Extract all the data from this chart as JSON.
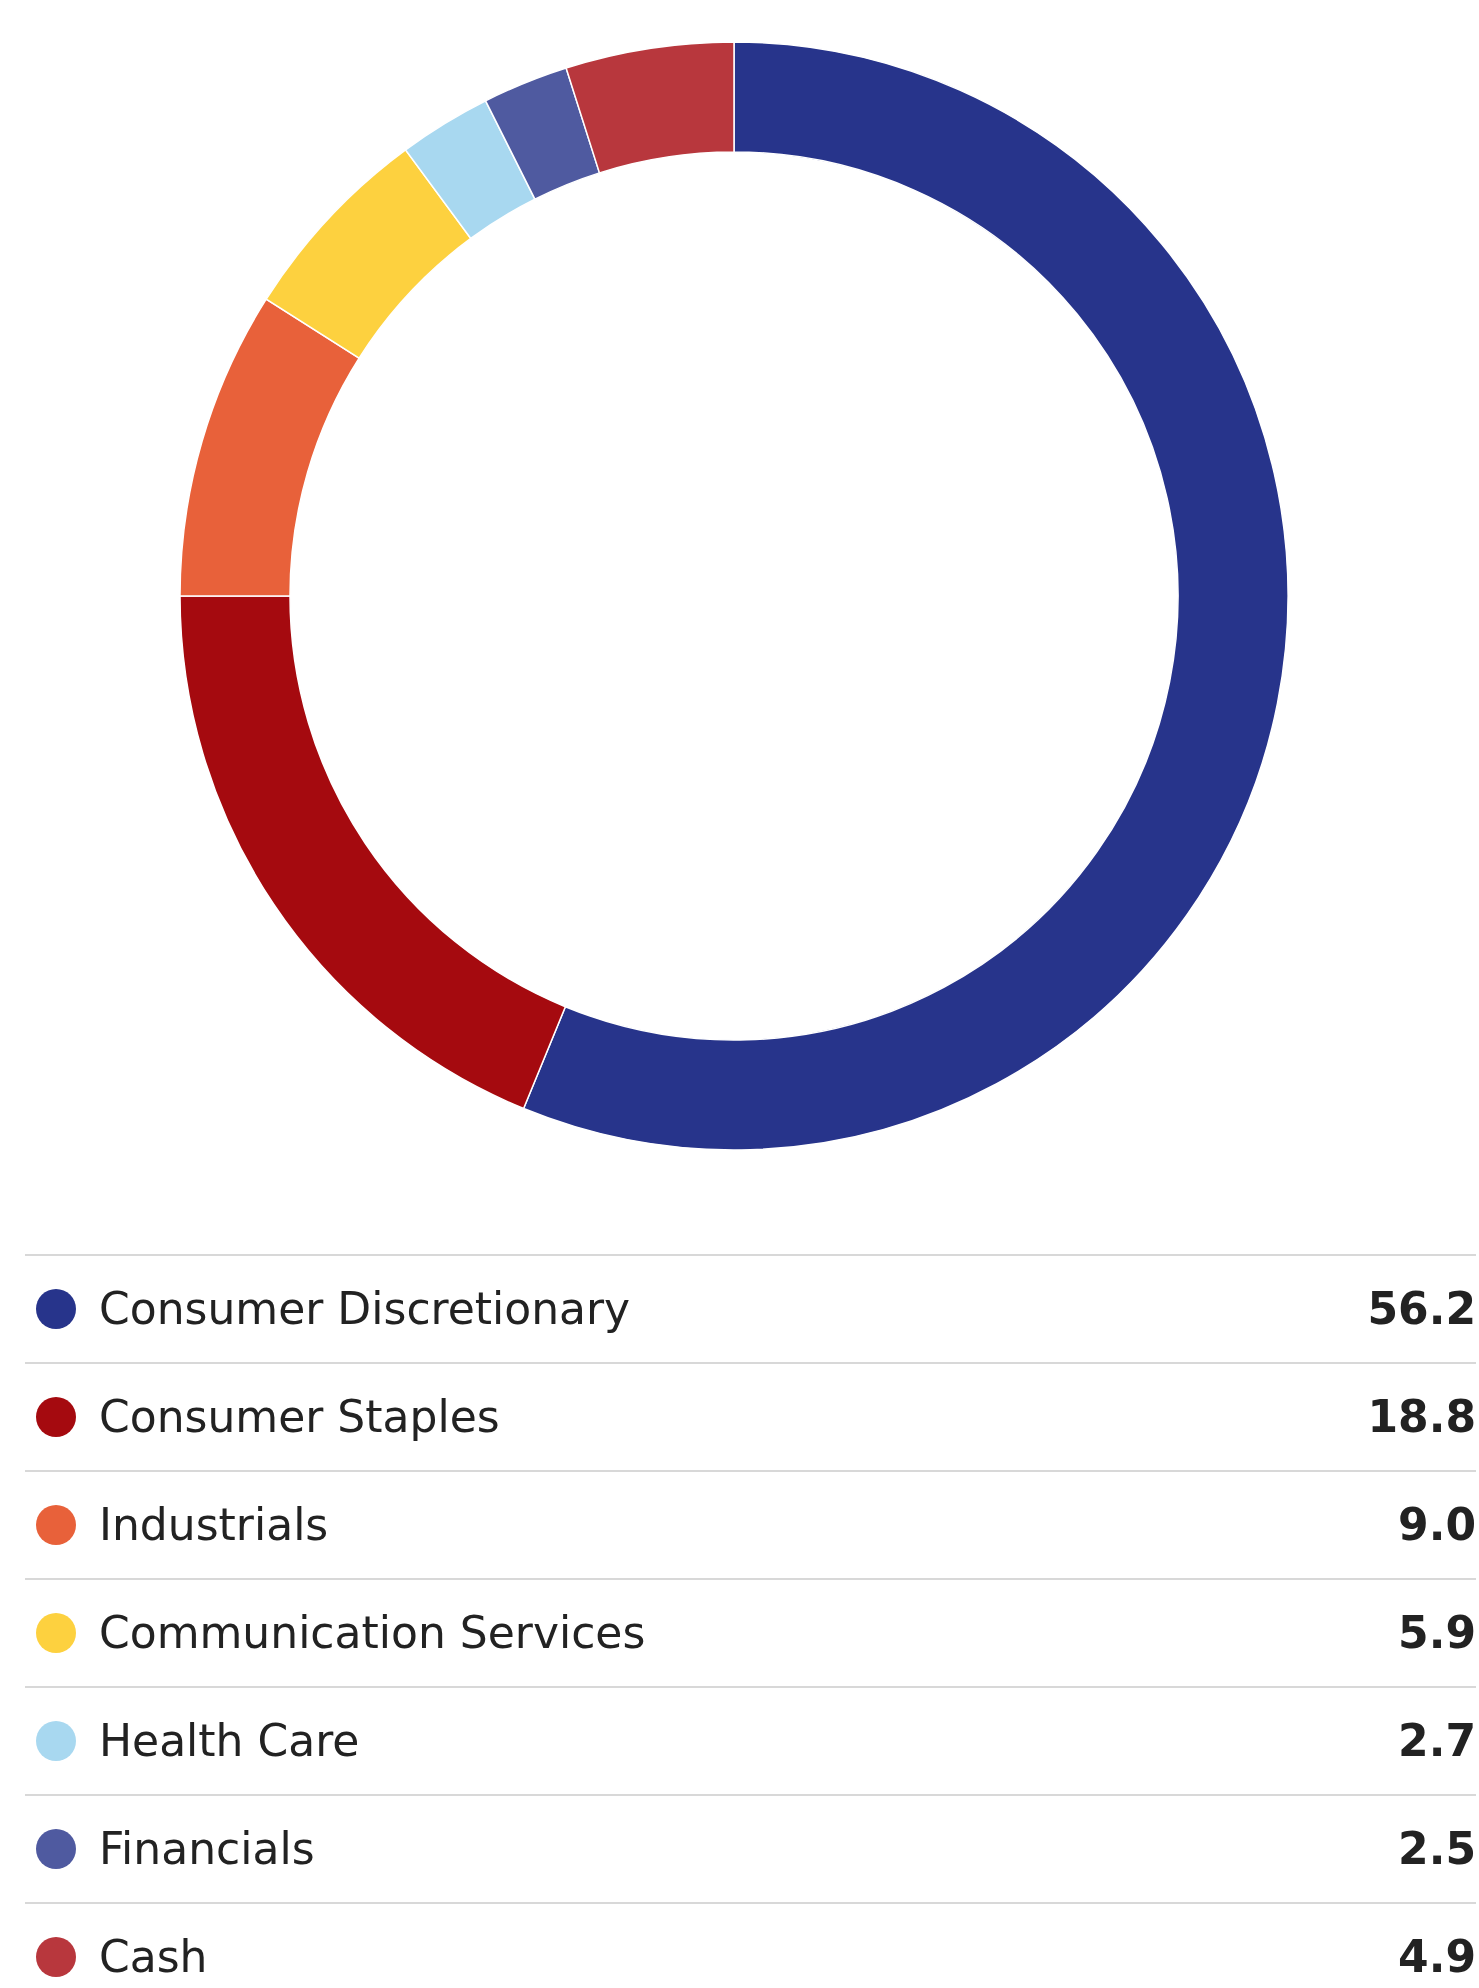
{
  "chart_data": {
    "type": "donut",
    "categories": [
      "Consumer Discretionary",
      "Consumer Staples",
      "Industrials",
      "Communication Services",
      "Health Care",
      "Financials",
      "Cash"
    ],
    "values": [
      56.2,
      18.8,
      9.0,
      5.9,
      2.7,
      2.5,
      4.9
    ],
    "colors": [
      "#27348b",
      "#a50a0f",
      "#e8613a",
      "#fdd13f",
      "#a8d8f0",
      "#4f5aa0",
      "#b8373d"
    ],
    "value_labels": [
      "56.2",
      "18.8",
      "9.0",
      "5.9",
      "2.7",
      "2.5",
      "4.9"
    ],
    "legend": "bottom"
  }
}
